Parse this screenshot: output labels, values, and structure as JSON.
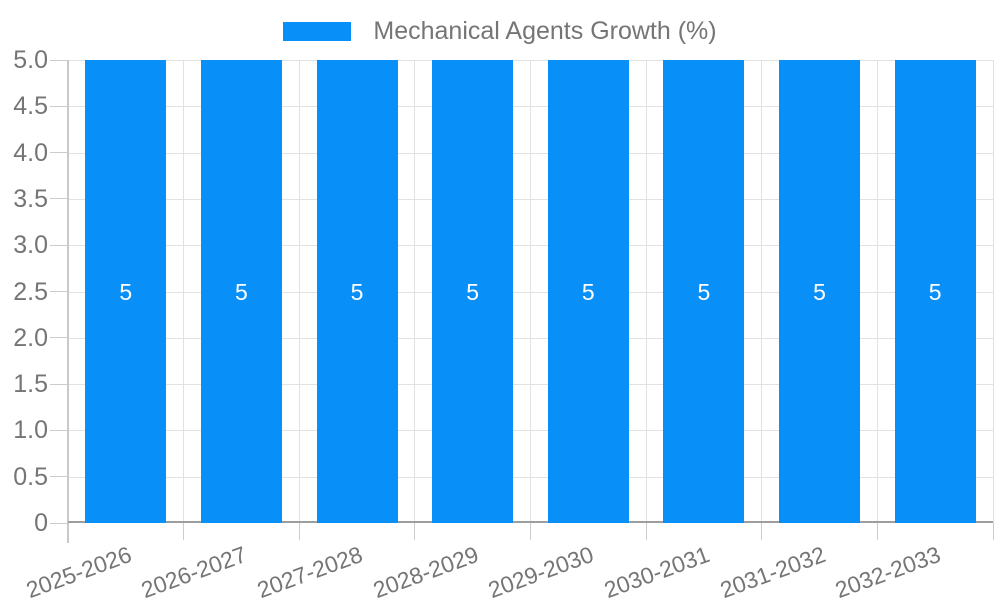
{
  "legend": {
    "label": "Mechanical Agents Growth (%)",
    "position": "top"
  },
  "chart_data": {
    "type": "bar",
    "title": "",
    "xlabel": "",
    "ylabel": "",
    "categories": [
      "2025-2026",
      "2026-2027",
      "2027-2028",
      "2028-2029",
      "2029-2030",
      "2030-2031",
      "2031-2032",
      "2032-2033"
    ],
    "series": [
      {
        "name": "Mechanical Agents Growth (%)",
        "values": [
          5,
          5,
          5,
          5,
          5,
          5,
          5,
          5
        ],
        "bar_value_labels": [
          "5",
          "5",
          "5",
          "5",
          "5",
          "5",
          "5",
          "5"
        ]
      }
    ],
    "ylim": [
      0,
      5
    ],
    "ytick_labels": [
      "5.0",
      "4.5",
      "4.0",
      "3.5",
      "3.0",
      "2.5",
      "2.0",
      "1.5",
      "1.0",
      "0.5",
      "0"
    ],
    "grid": true,
    "legend_position": "top",
    "x_label_rotation_deg": -20
  },
  "colors": {
    "bar": "#0990f8",
    "grid": "#e2e2e2",
    "axis_x": "#9e9e9e",
    "axis_y": "#c9c9c9",
    "tick": "#cccccc",
    "text": "#757575",
    "bar_label": "#ffffff",
    "background": "#ffffff"
  }
}
